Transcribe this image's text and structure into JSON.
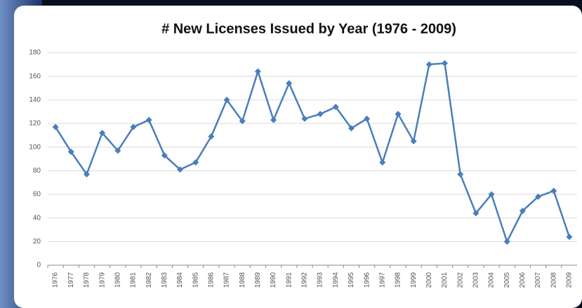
{
  "chart_data": {
    "type": "line",
    "title": "# New Licenses Issued by Year (1976 - 2009)",
    "categories": [
      "1976",
      "1977",
      "1978",
      "1979",
      "1980",
      "1981",
      "1982",
      "1983",
      "1984",
      "1985",
      "1986",
      "1987",
      "1988",
      "1989",
      "1990",
      "1991",
      "1992",
      "1993",
      "1994",
      "1995",
      "1996",
      "1997",
      "1998",
      "1999",
      "2000",
      "2001",
      "2002",
      "2003",
      "2004",
      "2005",
      "2006",
      "2007",
      "2008",
      "2009"
    ],
    "values": [
      117,
      96,
      77,
      112,
      97,
      117,
      123,
      93,
      81,
      87,
      109,
      140,
      122,
      164,
      123,
      154,
      124,
      128,
      134,
      116,
      124,
      87,
      128,
      105,
      170,
      171,
      77,
      44,
      60,
      20,
      46,
      58,
      63,
      24
    ],
    "color": "#4a7ebb",
    "ylim": [
      0,
      180
    ],
    "yticks": [
      0,
      20,
      40,
      60,
      80,
      100,
      120,
      140,
      160,
      180
    ],
    "grid": true
  }
}
